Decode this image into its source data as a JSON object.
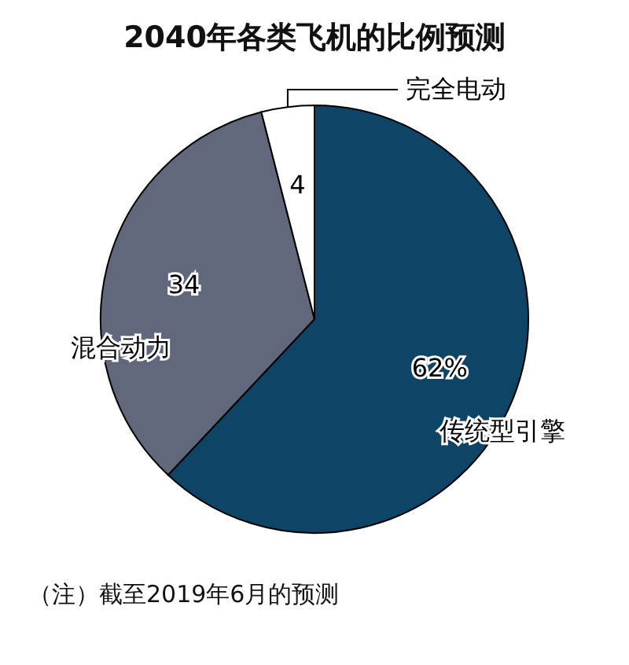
{
  "chart_data": {
    "type": "pie",
    "title": "2040年各类飞机的比例预测",
    "categories": [
      "传统型引擎",
      "混合动力",
      "完全电动"
    ],
    "values": [
      62,
      34,
      4
    ],
    "colors": [
      "#0e4566",
      "#62687b",
      "#ffffff"
    ],
    "value_labels": [
      "62%",
      "34",
      "4"
    ],
    "annotations": [
      "（注）截至2019年6月的预测"
    ]
  }
}
